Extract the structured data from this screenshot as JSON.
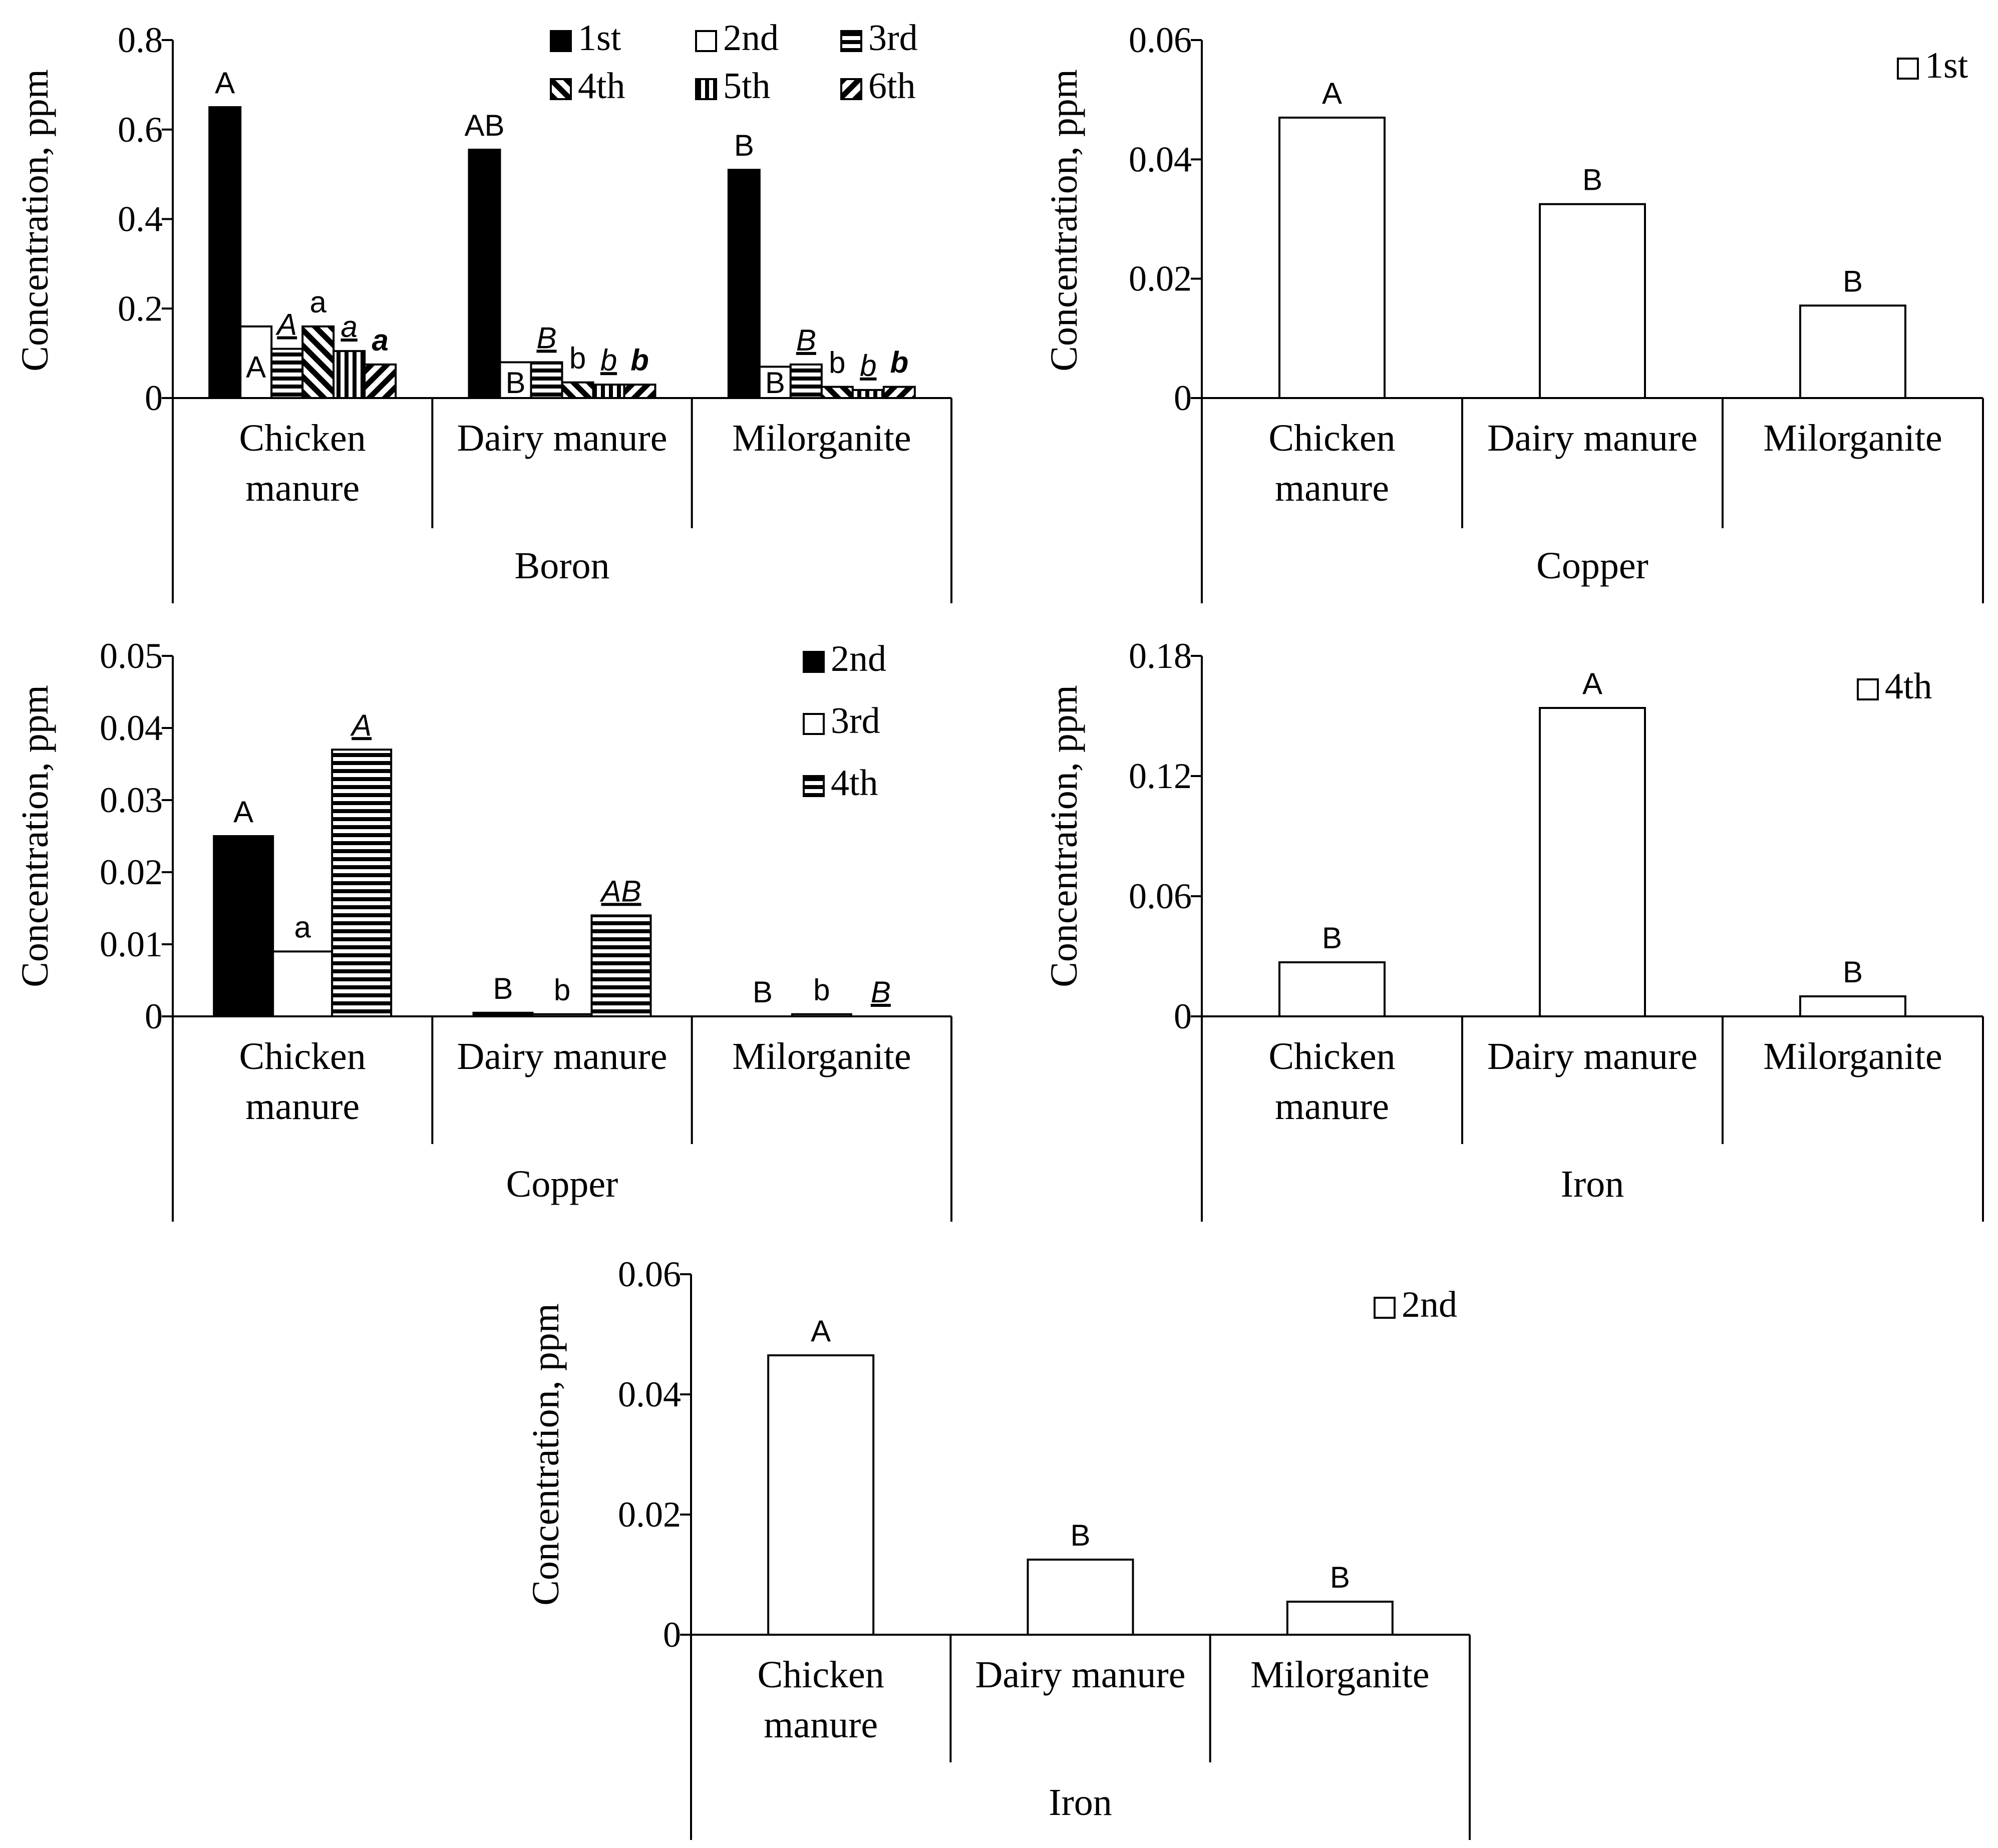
{
  "chart_data": [
    {
      "type": "bar",
      "group_label": "Boron",
      "ylabel": "Concentration, ppm",
      "ylim": [
        0,
        0.8
      ],
      "yticks": [
        "0",
        "0.2",
        "0.4",
        "0.6",
        "0.8"
      ],
      "categories": [
        "Chicken manure",
        "Dairy manure",
        "Milorganite"
      ],
      "category_lines": [
        [
          "Chicken",
          "manure"
        ],
        [
          "Dairy manure"
        ],
        [
          "Milorganite"
        ]
      ],
      "legend_position": "top-center",
      "series": [
        {
          "name": "1st",
          "pattern": "solid",
          "values": [
            0.65,
            0.555,
            0.51
          ],
          "labels": [
            "A",
            "AB",
            "B"
          ],
          "label_style": "normal"
        },
        {
          "name": "2nd",
          "pattern": "white",
          "values": [
            0.16,
            0.08,
            0.07
          ],
          "labels": [
            "A",
            "B",
            "B"
          ],
          "label_style": "normal"
        },
        {
          "name": "3rd",
          "pattern": "hlines",
          "values": [
            0.11,
            0.08,
            0.075
          ],
          "labels": [
            "A",
            "B",
            "B"
          ],
          "label_style": "underline-italic"
        },
        {
          "name": "4th",
          "pattern": "diag-up",
          "values": [
            0.16,
            0.035,
            0.025
          ],
          "labels": [
            "a",
            "b",
            "b"
          ],
          "label_style": "normal"
        },
        {
          "name": "5th",
          "pattern": "vlines",
          "values": [
            0.105,
            0.03,
            0.018
          ],
          "labels": [
            "a",
            "b",
            "b"
          ],
          "label_style": "underline-italic"
        },
        {
          "name": "6th",
          "pattern": "diag-down",
          "values": [
            0.075,
            0.03,
            0.025
          ],
          "labels": [
            "a",
            "b",
            "b"
          ],
          "label_style": "bold-italic"
        }
      ]
    },
    {
      "type": "bar",
      "group_label": "Copper",
      "ylabel": "Concentration, ppm",
      "ylim": [
        0,
        0.06
      ],
      "yticks": [
        "0",
        "0.02",
        "0.04",
        "0.06"
      ],
      "categories": [
        "Chicken manure",
        "Dairy manure",
        "Milorganite"
      ],
      "category_lines": [
        [
          "Chicken",
          "manure"
        ],
        [
          "Dairy manure"
        ],
        [
          "Milorganite"
        ]
      ],
      "legend_position": "top-right",
      "series": [
        {
          "name": "1st",
          "pattern": "white",
          "values": [
            0.047,
            0.0325,
            0.0155
          ],
          "labels": [
            "A",
            "B",
            "B"
          ],
          "label_style": "normal"
        }
      ]
    },
    {
      "type": "bar",
      "group_label": "Copper",
      "ylabel": "Concentration, ppm",
      "ylim": [
        0,
        0.05
      ],
      "yticks": [
        "0",
        "0.01",
        "0.02",
        "0.03",
        "0.04",
        "0.05"
      ],
      "categories": [
        "Chicken manure",
        "Dairy manure",
        "Milorganite"
      ],
      "category_lines": [
        [
          "Chicken",
          "manure"
        ],
        [
          "Dairy manure"
        ],
        [
          "Milorganite"
        ]
      ],
      "legend_position": "top-right",
      "series": [
        {
          "name": "2nd",
          "pattern": "solid",
          "values": [
            0.025,
            0.0005,
            0.0
          ],
          "labels": [
            "A",
            "B",
            "B"
          ],
          "label_style": "normal"
        },
        {
          "name": "3rd",
          "pattern": "white",
          "values": [
            0.009,
            0.0003,
            0.0003
          ],
          "labels": [
            "a",
            "b",
            "b"
          ],
          "label_style": "normal"
        },
        {
          "name": "4th",
          "pattern": "hlines",
          "values": [
            0.037,
            0.014,
            0.0
          ],
          "labels": [
            "A",
            "AB",
            "B"
          ],
          "label_style": "underline-italic"
        }
      ]
    },
    {
      "type": "bar",
      "group_label": "Iron",
      "ylabel": "Concentration, ppm",
      "ylim": [
        0,
        0.18
      ],
      "yticks": [
        "0",
        "0.06",
        "0.12",
        "0.18"
      ],
      "categories": [
        "Chicken manure",
        "Dairy manure",
        "Milorganite"
      ],
      "category_lines": [
        [
          "Chicken",
          "manure"
        ],
        [
          "Dairy manure"
        ],
        [
          "Milorganite"
        ]
      ],
      "legend_position": "top-right",
      "series": [
        {
          "name": "4th",
          "pattern": "white",
          "values": [
            0.027,
            0.154,
            0.01
          ],
          "labels": [
            "B",
            "A",
            "B"
          ],
          "label_style": "normal"
        }
      ]
    },
    {
      "type": "bar",
      "group_label": "Iron",
      "ylabel": "Concentration, ppm",
      "ylim": [
        0,
        0.06
      ],
      "yticks": [
        "0",
        "0.02",
        "0.04",
        "0.06"
      ],
      "categories": [
        "Chicken manure",
        "Dairy manure",
        "Milorganite"
      ],
      "category_lines": [
        [
          "Chicken",
          "manure"
        ],
        [
          "Dairy manure"
        ],
        [
          "Milorganite"
        ]
      ],
      "legend_position": "top-right",
      "series": [
        {
          "name": "2nd",
          "pattern": "white",
          "values": [
            0.0465,
            0.0125,
            0.0055
          ],
          "labels": [
            "A",
            "B",
            "B"
          ],
          "label_style": "normal"
        }
      ]
    }
  ]
}
